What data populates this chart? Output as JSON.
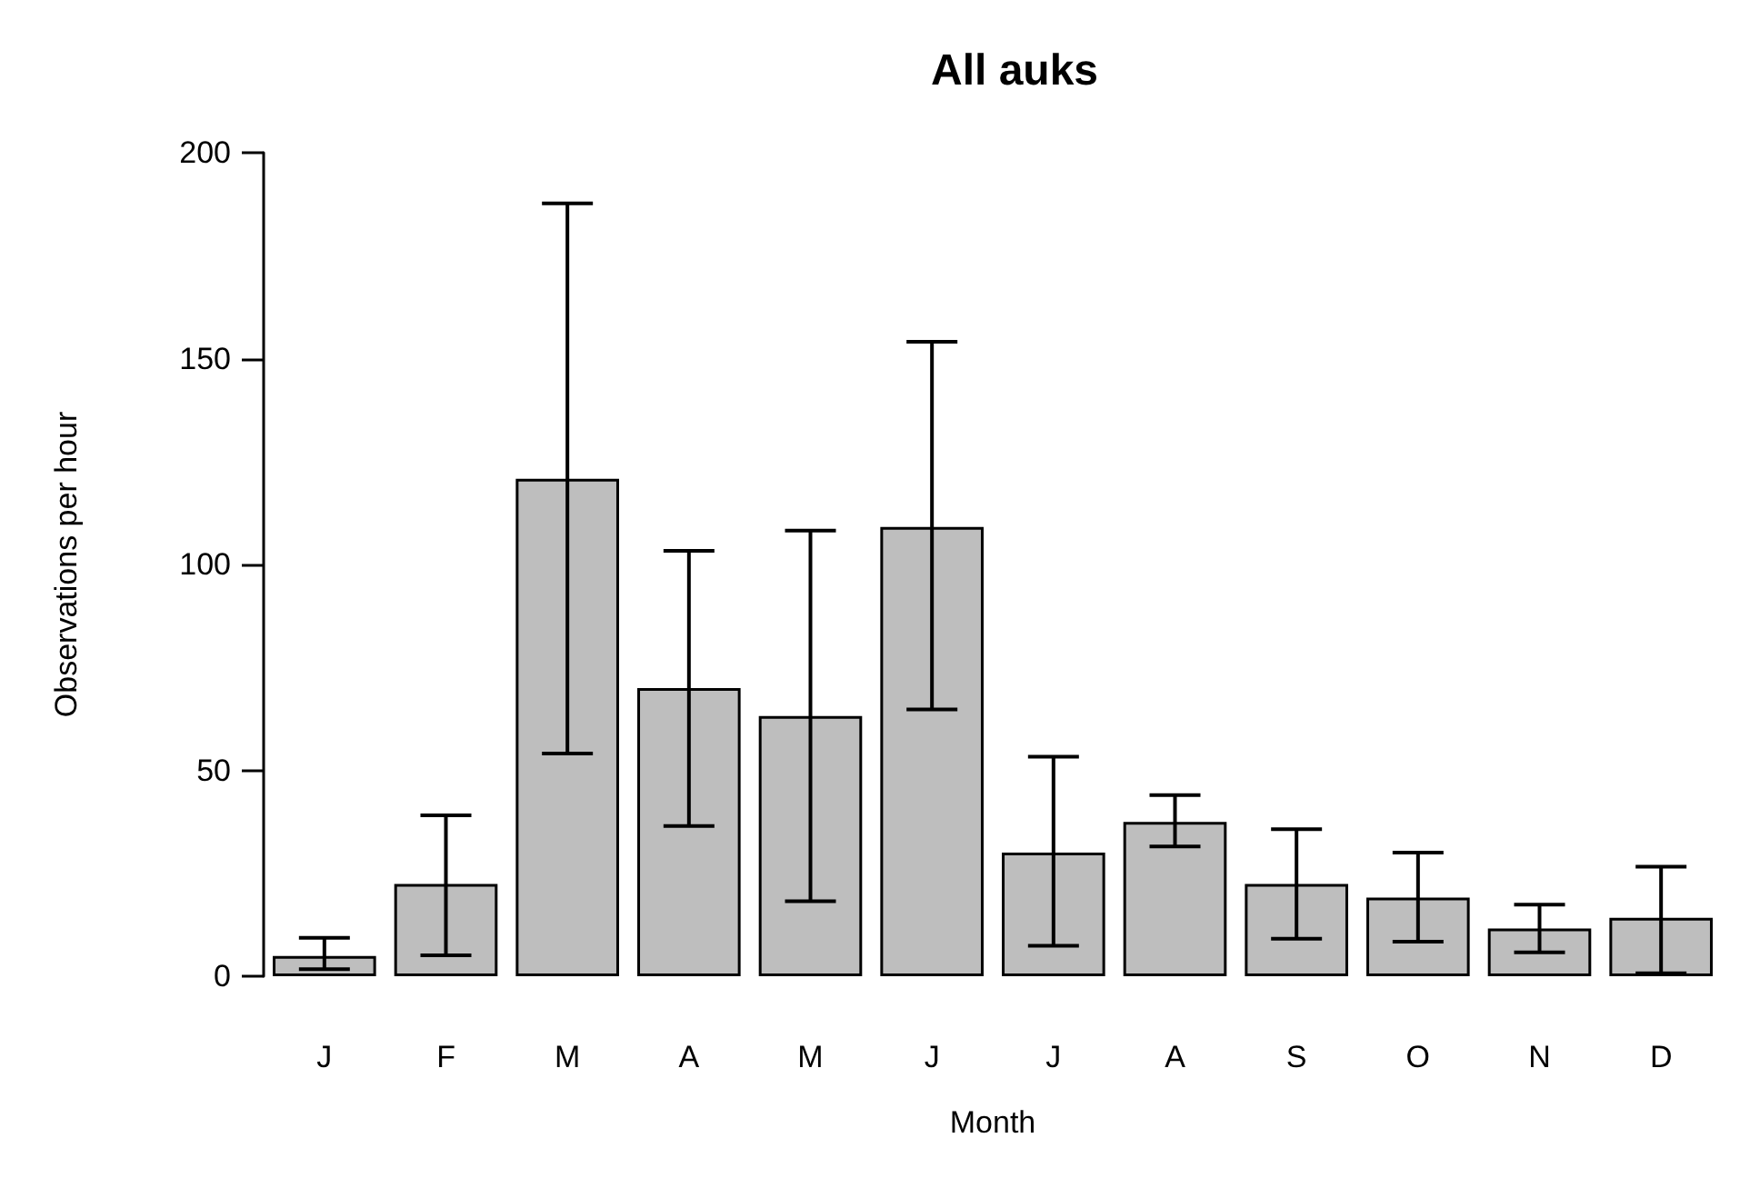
{
  "chart_data": {
    "type": "bar",
    "title": "All auks",
    "xlabel": "Month",
    "ylabel": "Observations per hour",
    "categories": [
      "J",
      "F",
      "M",
      "A",
      "M",
      "J",
      "J",
      "A",
      "S",
      "O",
      "N",
      "D"
    ],
    "values": [
      4.9,
      22.4,
      120.8,
      70,
      63.2,
      109.1,
      30,
      37.5,
      22.4,
      19.1,
      11.6,
      14.2
    ],
    "errors": [
      [
        1.7,
        9.3
      ],
      [
        5.1,
        39.1
      ],
      [
        54.1,
        187.7
      ],
      [
        36.5,
        103.3
      ],
      [
        18.2,
        108.2
      ],
      [
        64.8,
        154.1
      ],
      [
        7.4,
        53.3
      ],
      [
        31.5,
        44
      ],
      [
        9.1,
        35.7
      ],
      [
        8.4,
        30
      ],
      [
        5.8,
        17.4
      ],
      [
        0.7,
        26.6
      ]
    ],
    "color": "#bebebe",
    "ylim": [
      0,
      200
    ],
    "yticks": [
      0,
      50,
      100,
      150,
      200
    ],
    "grid": false
  }
}
